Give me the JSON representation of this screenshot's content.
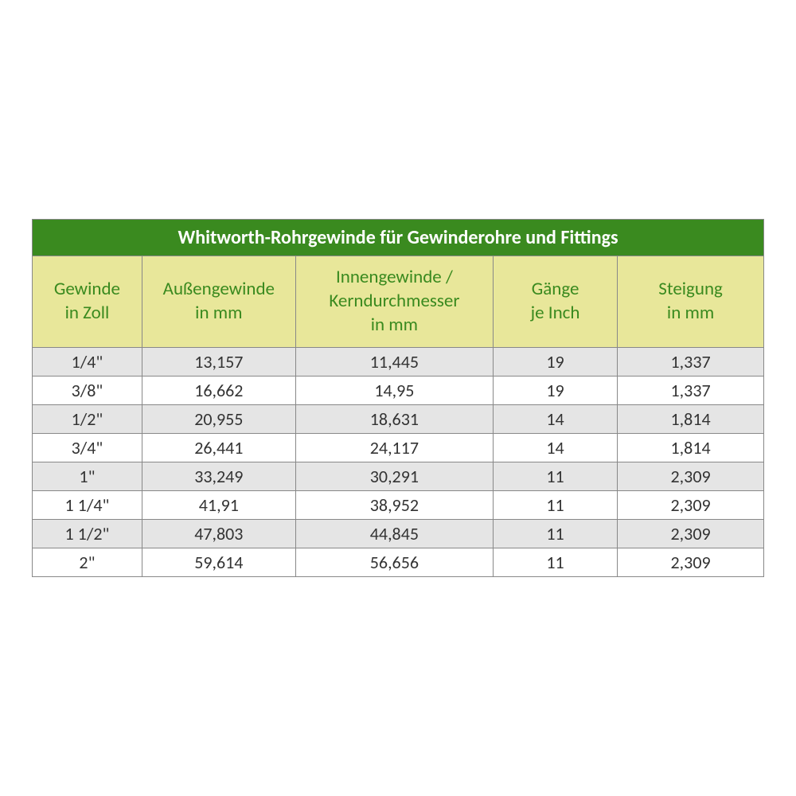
{
  "table": {
    "title": "Whitworth-Rohrgewinde für Gewinderohre und Fittings",
    "type": "table",
    "colors": {
      "title_bg": "#3a8a1f",
      "title_text": "#ffffff",
      "header_bg": "#e8e79a",
      "header_text": "#3a8a1f",
      "row_odd_bg": "#e5e5e5",
      "row_even_bg": "#ffffff",
      "border": "#888888",
      "cell_text": "#333333"
    },
    "fonts": {
      "title_size": 24,
      "header_size": 23,
      "cell_size": 22,
      "family": "Calibri"
    },
    "column_widths_percent": [
      15,
      21,
      27,
      17,
      20
    ],
    "columns": [
      "Gewinde in Zoll",
      "Außengewinde in mm",
      "Innengewinde / Kerndurchmesser in mm",
      "Gänge je Inch",
      "Steigung in mm"
    ],
    "columns_multiline": [
      [
        "Gewinde",
        "in Zoll"
      ],
      [
        "Außengewinde",
        "in mm"
      ],
      [
        "Innengewinde /",
        "Kerndurchmesser",
        "in mm"
      ],
      [
        "Gänge",
        "je Inch"
      ],
      [
        "Steigung",
        "in mm"
      ]
    ],
    "rows": [
      [
        "1/4\"",
        "13,157",
        "11,445",
        "19",
        "1,337"
      ],
      [
        "3/8\"",
        "16,662",
        "14,95",
        "19",
        "1,337"
      ],
      [
        "1/2\"",
        "20,955",
        "18,631",
        "14",
        "1,814"
      ],
      [
        "3/4\"",
        "26,441",
        "24,117",
        "14",
        "1,814"
      ],
      [
        "1\"",
        "33,249",
        "30,291",
        "11",
        "2,309"
      ],
      [
        "1 1/4\"",
        "41,91",
        "38,952",
        "11",
        "2,309"
      ],
      [
        "1 1/2\"",
        "47,803",
        "44,845",
        "11",
        "2,309"
      ],
      [
        "2\"",
        "59,614",
        "56,656",
        "11",
        "2,309"
      ]
    ]
  }
}
